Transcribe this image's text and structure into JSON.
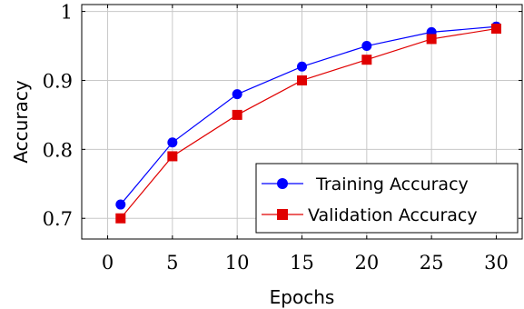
{
  "chart_data": {
    "type": "line",
    "title": "",
    "xlabel": "Epochs",
    "ylabel": "Accuracy",
    "xlim": [
      -2,
      32
    ],
    "ylim": [
      0.67,
      1.01
    ],
    "xticks": [
      0,
      5,
      10,
      15,
      20,
      25,
      30
    ],
    "yticks": [
      0.7,
      0.8,
      0.9,
      1
    ],
    "xtick_labels": [
      "0",
      "5",
      "10",
      "15",
      "20",
      "25",
      "30"
    ],
    "ytick_labels": [
      "0.7",
      "0.8",
      "0.9",
      "1"
    ],
    "grid": true,
    "legend_position": "bottom-right",
    "x": [
      1,
      5,
      10,
      15,
      20,
      25,
      30
    ],
    "series": [
      {
        "name": "Training Accuracy",
        "color": "#0000ff",
        "marker": "circle",
        "values": [
          0.72,
          0.81,
          0.88,
          0.92,
          0.95,
          0.97,
          0.978
        ]
      },
      {
        "name": "Validation Accuracy",
        "color": "#e00000",
        "marker": "square",
        "values": [
          0.7,
          0.79,
          0.85,
          0.9,
          0.93,
          0.96,
          0.975
        ]
      }
    ]
  }
}
